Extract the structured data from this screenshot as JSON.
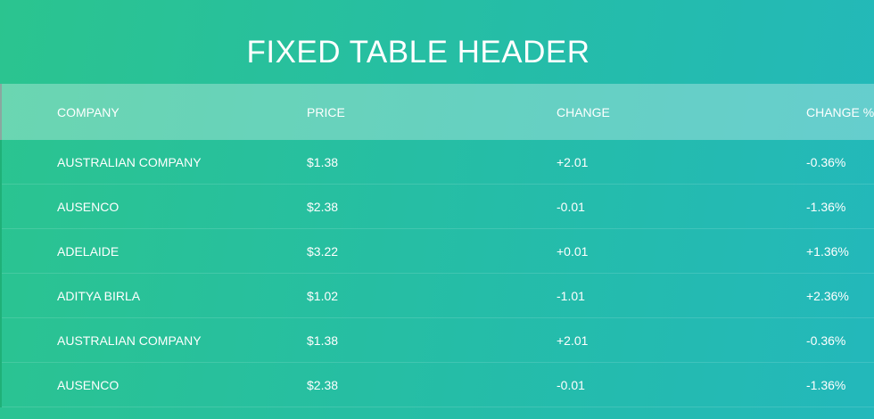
{
  "page": {
    "title": "FIXED TABLE HEADER"
  },
  "table": {
    "columns": [
      "COMPANY",
      "PRICE",
      "CHANGE",
      "CHANGE %"
    ],
    "rows": [
      [
        "AUSTRALIAN COMPANY",
        "$1.38",
        "+2.01",
        "-0.36%"
      ],
      [
        "AUSENCO",
        "$2.38",
        "-0.01",
        "-1.36%"
      ],
      [
        "ADELAIDE",
        "$3.22",
        "+0.01",
        "+1.36%"
      ],
      [
        "ADITYA BIRLA",
        "$1.02",
        "-1.01",
        "+2.36%"
      ],
      [
        "AUSTRALIAN COMPANY",
        "$1.38",
        "+2.01",
        "-0.36%"
      ],
      [
        "AUSENCO",
        "$2.38",
        "-0.01",
        "-1.36%"
      ]
    ]
  },
  "colors": {
    "gradient_start": "#2bc48f",
    "gradient_end": "#23b8bb",
    "text": "#ffffff"
  }
}
